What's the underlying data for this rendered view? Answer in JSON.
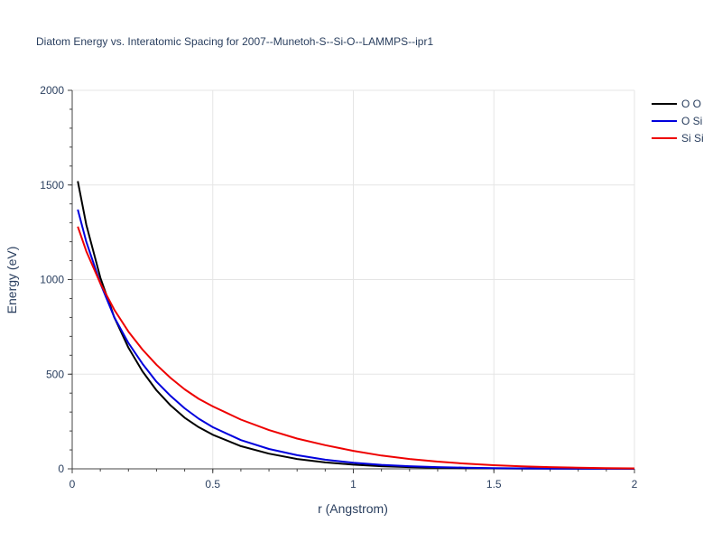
{
  "chart_data": {
    "type": "line",
    "title": "Diatom Energy vs. Interatomic Spacing for 2007--Munetoh-S--Si-O--LAMMPS--ipr1",
    "xlabel": "r (Angstrom)",
    "ylabel": "Energy (eV)",
    "xlim": [
      0,
      2
    ],
    "ylim": [
      0,
      2000
    ],
    "xticks": [
      0,
      0.5,
      1,
      1.5,
      2
    ],
    "xtick_labels": [
      "0",
      "0.5",
      "1",
      "1.5",
      "2"
    ],
    "yticks": [
      0,
      500,
      1000,
      1500,
      2000
    ],
    "ytick_labels": [
      "0",
      "500",
      "1000",
      "1500",
      "2000"
    ],
    "grid": true,
    "legend_position": "top-right",
    "x": [
      0.02,
      0.05,
      0.1,
      0.15,
      0.2,
      0.25,
      0.3,
      0.35,
      0.4,
      0.45,
      0.5,
      0.6,
      0.7,
      0.8,
      0.9,
      1.0,
      1.1,
      1.2,
      1.3,
      1.4,
      1.5,
      1.6,
      1.7,
      1.8,
      1.9,
      2.0
    ],
    "series": [
      {
        "name": "O O",
        "color": "#000000",
        "values": [
          1520,
          1290,
          1010,
          800,
          640,
          515,
          415,
          335,
          270,
          220,
          180,
          120,
          80,
          52,
          34,
          22,
          14,
          9,
          6,
          4,
          2.5,
          1.6,
          1,
          0.6,
          0.4,
          0.2
        ]
      },
      {
        "name": "O Si",
        "color": "#0000dd",
        "values": [
          1370,
          1200,
          980,
          800,
          665,
          555,
          460,
          385,
          320,
          265,
          220,
          152,
          105,
          72,
          48,
          32,
          21,
          14,
          9,
          6,
          4,
          2.5,
          1.6,
          1,
          0.6,
          0.4
        ]
      },
      {
        "name": "Si Si",
        "color": "#ee0000",
        "values": [
          1280,
          1150,
          980,
          840,
          725,
          630,
          550,
          480,
          420,
          370,
          330,
          260,
          205,
          160,
          125,
          95,
          70,
          52,
          38,
          27,
          19,
          13,
          9,
          6,
          4,
          2.5
        ]
      }
    ]
  }
}
